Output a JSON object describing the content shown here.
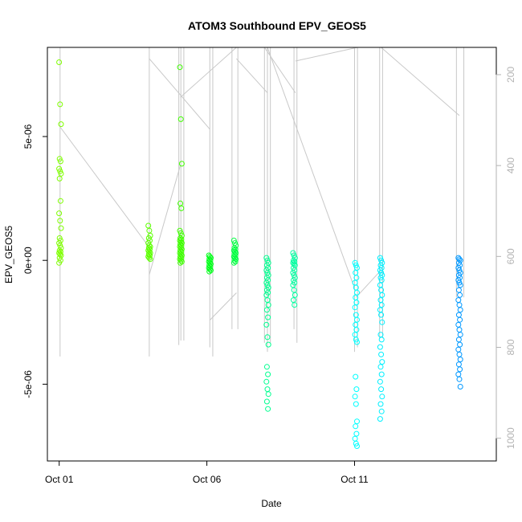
{
  "chart_data": {
    "type": "scatter",
    "title": "ATOM3 Southbound EPV_GEOS5",
    "xlabel": "Date",
    "ylabel": "EPV_GEOS5",
    "x_ticks": [
      {
        "day": 1,
        "label": "Oct 01"
      },
      {
        "day": 6,
        "label": "Oct 06"
      },
      {
        "day": 11,
        "label": "Oct 11"
      }
    ],
    "y_ticks": [
      {
        "value": -5e-06,
        "label": "-5e-06"
      },
      {
        "value": 0,
        "label": "0e+00"
      },
      {
        "value": 5e-06,
        "label": "5e-06"
      }
    ],
    "y2_ticks": [
      {
        "value": 200,
        "label": "200"
      },
      {
        "value": 400,
        "label": "400"
      },
      {
        "value": 600,
        "label": "600"
      },
      {
        "value": 800,
        "label": "800"
      },
      {
        "value": 1000,
        "label": "1000"
      }
    ],
    "xlim": [
      0.6,
      15.8
    ],
    "ylim": [
      -8.1e-06,
      8.6e-06
    ],
    "y2lim": [
      1050,
      140
    ],
    "y2_color": "#b3b3b3",
    "clusters": [
      {
        "day": 1.03,
        "color": "#7fff00",
        "values": [
          8e-06,
          6.3e-06,
          5.5e-06,
          4.1e-06,
          4e-06,
          3.7e-06,
          3.6e-06,
          3.5e-06,
          3.3e-06,
          2.4e-06,
          1.9e-06,
          1.6e-06,
          1.3e-06,
          9e-07,
          8e-07,
          7e-07,
          6e-07,
          5e-07,
          4e-07,
          3.5e-07,
          3e-07,
          2.5e-07,
          2e-07,
          1e-07,
          0.0,
          -1e-07
        ]
      },
      {
        "day": 4.05,
        "color": "#5cff00",
        "values": [
          1.4e-06,
          1.2e-06,
          1e-06,
          9e-07,
          8e-07,
          7e-07,
          6e-07,
          5.5e-07,
          5e-07,
          4.5e-07,
          4e-07,
          3.5e-07,
          3e-07,
          2.5e-07,
          2e-07,
          1.5e-07,
          1e-07,
          5e-08
        ]
      },
      {
        "day": 5.12,
        "color": "#3fff00",
        "values": [
          7.8e-06,
          5.7e-06,
          3.9e-06,
          2.3e-06,
          2.1e-06,
          1.2e-06,
          1.1e-06,
          1e-06,
          9e-07,
          8.5e-07,
          8e-07,
          7.5e-07,
          7e-07,
          6.5e-07,
          6e-07,
          5.5e-07,
          5e-07,
          4.5e-07,
          4e-07,
          3.5e-07,
          3e-07,
          2.5e-07,
          2e-07,
          1.5e-07,
          1e-07,
          5e-08,
          0.0,
          -5e-08,
          -1e-07
        ]
      },
      {
        "day": 6.1,
        "color": "#00ff19",
        "values": [
          2e-07,
          1.5e-07,
          1e-07,
          5e-08,
          0.0,
          -5e-08,
          -1e-07,
          -1.5e-07,
          -2e-07,
          -2.5e-07,
          -3e-07,
          -3.5e-07,
          -4e-07,
          -4.5e-07
        ]
      },
      {
        "day": 6.95,
        "color": "#00ff40",
        "values": [
          8e-07,
          7e-07,
          6e-07,
          5e-07,
          4.5e-07,
          4e-07,
          3.5e-07,
          3e-07,
          2.5e-07,
          2e-07,
          1.5e-07,
          1e-07,
          5e-08,
          0.0,
          -5e-08,
          -1e-07
        ]
      },
      {
        "day": 8.05,
        "color": "#00ff90",
        "values": [
          1e-07,
          0.0,
          -1e-07,
          -2e-07,
          -3e-07,
          -4e-07,
          -5e-07,
          -6e-07,
          -7e-07,
          -8e-07,
          -9e-07,
          -1e-06,
          -1.1e-06,
          -1.2e-06,
          -1.3e-06,
          -1.4e-06,
          -1.6e-06,
          -1.8e-06,
          -2e-06,
          -2.3e-06,
          -2.6e-06,
          -3.1e-06,
          -3.4e-06,
          -4.3e-06,
          -4.6e-06,
          -4.9e-06,
          -5.2e-06,
          -5.4e-06,
          -5.7e-06,
          -6e-06
        ]
      },
      {
        "day": 8.95,
        "color": "#00ffa0",
        "values": [
          3e-07,
          2e-07,
          1e-07,
          0.0,
          -5e-08,
          -1e-07,
          -1.5e-07,
          -2e-07,
          -3e-07,
          -4e-07,
          -5e-07,
          -6e-07,
          -7e-07,
          -8e-07,
          -9e-07,
          -1e-06,
          -1.2e-06,
          -1.4e-06,
          -1.6e-06,
          -1.8e-06
        ]
      },
      {
        "day": 11.05,
        "color": "#00ffff",
        "values": [
          -1e-07,
          -2e-07,
          -3e-07,
          -5e-07,
          -7e-07,
          -9e-07,
          -1.1e-06,
          -1.3e-06,
          -1.5e-06,
          -1.7e-06,
          -1.9e-06,
          -2.2e-06,
          -2.4e-06,
          -2.6e-06,
          -2.8e-06,
          -3e-06,
          -3.2e-06,
          -3.3e-06,
          -4.7e-06,
          -5.2e-06,
          -5.5e-06,
          -5.8e-06,
          -6.5e-06,
          -6.7e-06,
          -7e-06,
          -7.2e-06,
          -7.4e-06,
          -7.5e-06
        ]
      },
      {
        "day": 11.9,
        "color": "#00f0ff",
        "values": [
          1e-07,
          0.0,
          -1e-07,
          -2e-07,
          -3e-07,
          -4e-07,
          -5e-07,
          -6e-07,
          -7e-07,
          -8e-07,
          -1e-06,
          -1.2e-06,
          -1.4e-06,
          -1.6e-06,
          -1.8e-06,
          -2e-06,
          -2.2e-06,
          -2.5e-06,
          -3e-06,
          -3.2e-06,
          -3.5e-06,
          -3.8e-06,
          -4.1e-06,
          -4.3e-06,
          -4.6e-06,
          -4.9e-06,
          -5.2e-06,
          -5.5e-06,
          -5.8e-06,
          -6.1e-06,
          -6.4e-06
        ]
      },
      {
        "day": 14.55,
        "color": "#0098ff",
        "values": [
          1e-07,
          5e-08,
          0.0,
          -1e-07,
          -2e-07,
          -3e-07,
          -4e-07,
          -5e-07,
          -6e-07,
          -7e-07,
          -8e-07,
          -9e-07,
          -1e-06,
          -1.2e-06,
          -1.4e-06,
          -1.6e-06,
          -1.8e-06,
          -2e-06,
          -2.2e-06,
          -2.4e-06,
          -2.6e-06,
          -2.8e-06,
          -3e-06,
          -3.2e-06,
          -3.4e-06,
          -3.6e-06,
          -3.8e-06,
          -4e-06,
          -4.2e-06,
          -4.4e-06,
          -4.6e-06,
          -4.8e-06,
          -5.1e-06
        ]
      }
    ],
    "altitude_profiles": {
      "color": "#c8c8c8",
      "spikes": [
        {
          "day": 1.03,
          "top": 140,
          "bottom": 820
        },
        {
          "day": 4.05,
          "top": 140,
          "bottom": 820
        },
        {
          "day": 5.05,
          "top": 140,
          "bottom": 795
        },
        {
          "day": 5.12,
          "top": 140,
          "bottom": 785
        },
        {
          "day": 5.22,
          "top": 140,
          "bottom": 785
        },
        {
          "day": 6.1,
          "top": 140,
          "bottom": 800
        },
        {
          "day": 6.2,
          "top": 140,
          "bottom": 820
        },
        {
          "day": 6.85,
          "top": 140,
          "bottom": 760
        },
        {
          "day": 7.05,
          "top": 140,
          "bottom": 760
        },
        {
          "day": 7.95,
          "top": 140,
          "bottom": 790
        },
        {
          "day": 8.05,
          "top": 140,
          "bottom": 810
        },
        {
          "day": 8.15,
          "top": 140,
          "bottom": 790
        },
        {
          "day": 8.95,
          "top": 140,
          "bottom": 760
        },
        {
          "day": 9.05,
          "top": 140,
          "bottom": 790
        },
        {
          "day": 11.0,
          "top": 140,
          "bottom": 810
        },
        {
          "day": 11.1,
          "top": 140,
          "bottom": 800
        },
        {
          "day": 11.85,
          "top": 140,
          "bottom": 780
        },
        {
          "day": 11.95,
          "top": 140,
          "bottom": 780
        },
        {
          "day": 14.45,
          "top": 140,
          "bottom": 690
        },
        {
          "day": 14.7,
          "top": 140,
          "bottom": 690
        }
      ],
      "transits": [
        [
          [
            1.03,
            315
          ],
          [
            4.05,
            580
          ]
        ],
        [
          [
            4.05,
            640
          ],
          [
            5.1,
            400
          ]
        ],
        [
          [
            4.05,
            165
          ],
          [
            6.1,
            320
          ]
        ],
        [
          [
            5.1,
            250
          ],
          [
            7.0,
            140
          ]
        ],
        [
          [
            6.1,
            740
          ],
          [
            7.0,
            680
          ]
        ],
        [
          [
            7.0,
            165
          ],
          [
            8.05,
            240
          ]
        ],
        [
          [
            7.95,
            140
          ],
          [
            9.0,
            240
          ]
        ],
        [
          [
            8.05,
            140
          ],
          [
            11.0,
            670
          ]
        ],
        [
          [
            9.0,
            170
          ],
          [
            11.1,
            140
          ]
        ],
        [
          [
            11.05,
            690
          ],
          [
            11.9,
            630
          ]
        ],
        [
          [
            11.9,
            140
          ],
          [
            14.55,
            290
          ]
        ]
      ]
    }
  }
}
